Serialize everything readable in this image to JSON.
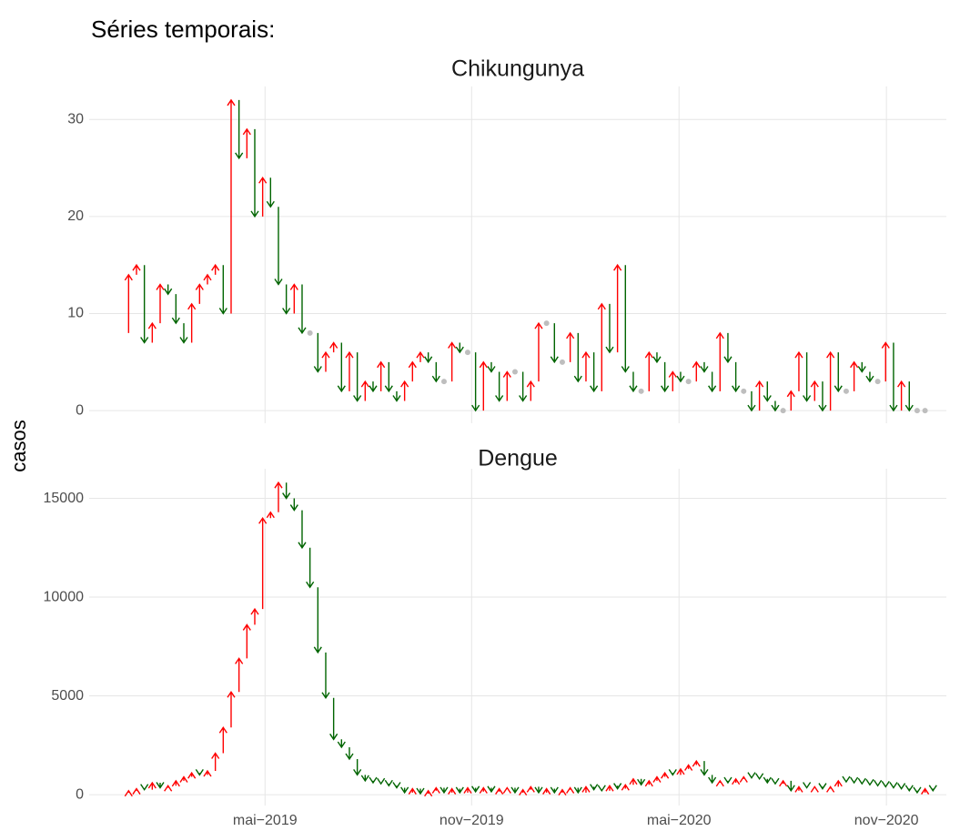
{
  "title": "Séries temporais:",
  "y_label": "casos",
  "up_color": "#ff0000",
  "down_color": "#006400",
  "equal_color": "#bebebe",
  "chart_data": [
    {
      "type": "arrow",
      "title": "Chikungunya",
      "x": [
        0,
        1,
        2,
        3,
        4,
        5,
        6,
        7,
        8,
        9,
        10,
        11,
        12,
        13,
        14,
        15,
        16,
        17,
        18,
        19,
        20,
        21,
        22,
        23,
        24,
        25,
        26,
        27,
        28,
        29,
        30,
        31,
        32,
        33,
        34,
        35,
        36,
        37,
        38,
        39,
        40,
        41,
        42,
        43,
        44,
        45,
        46,
        47,
        48,
        49,
        50,
        51,
        52,
        53,
        54,
        55,
        56,
        57,
        58,
        59,
        60,
        61,
        62,
        63,
        64,
        65,
        66,
        67,
        68,
        69,
        70,
        71,
        72,
        73,
        74,
        75,
        76,
        77,
        78,
        79,
        80,
        81,
        82,
        83,
        84,
        85,
        86,
        87,
        88,
        89,
        90,
        91,
        92,
        93,
        94,
        95,
        96,
        97,
        98,
        99,
        100,
        101,
        102
      ],
      "values": [
        8,
        14,
        15,
        7,
        9,
        13,
        12,
        9,
        7,
        11,
        13,
        14,
        15,
        10,
        32,
        26,
        29,
        20,
        24,
        21,
        13,
        10,
        13,
        8,
        8,
        4,
        6,
        7,
        2,
        6,
        1,
        3,
        2,
        5,
        2,
        1,
        3,
        5,
        6,
        5,
        3,
        3,
        7,
        6,
        6,
        0,
        5,
        4,
        1,
        4,
        4,
        1,
        3,
        9,
        9,
        5,
        5,
        8,
        3,
        6,
        2,
        11,
        6,
        15,
        4,
        2,
        2,
        6,
        5,
        2,
        4,
        3,
        3,
        5,
        4,
        2,
        8,
        5,
        2,
        2,
        0,
        3,
        1,
        0,
        0,
        2,
        6,
        1,
        3,
        0,
        6,
        2,
        2,
        5,
        4,
        3,
        3,
        7,
        0,
        3,
        0,
        0,
        0
      ],
      "ylim": [
        -1.3,
        33.4
      ],
      "yticks": [
        0,
        10,
        20,
        30
      ],
      "grid": true
    },
    {
      "type": "arrow",
      "title": "Dengue",
      "x": [
        0,
        1,
        2,
        3,
        4,
        5,
        6,
        7,
        8,
        9,
        10,
        11,
        12,
        13,
        14,
        15,
        16,
        17,
        18,
        19,
        20,
        21,
        22,
        23,
        24,
        25,
        26,
        27,
        28,
        29,
        30,
        31,
        32,
        33,
        34,
        35,
        36,
        37,
        38,
        39,
        40,
        41,
        42,
        43,
        44,
        45,
        46,
        47,
        48,
        49,
        50,
        51,
        52,
        53,
        54,
        55,
        56,
        57,
        58,
        59,
        60,
        61,
        62,
        63,
        64,
        65,
        66,
        67,
        68,
        69,
        70,
        71,
        72,
        73,
        74,
        75,
        76,
        77,
        78,
        79,
        80,
        81,
        82,
        83,
        84,
        85,
        86,
        87,
        88,
        89,
        90,
        91,
        92,
        93,
        94,
        95,
        96,
        97,
        98,
        99,
        100,
        101,
        102,
        103
      ],
      "values": [
        100,
        200,
        300,
        250,
        600,
        350,
        450,
        700,
        900,
        1100,
        1000,
        1200,
        2100,
        3400,
        5200,
        6900,
        8600,
        9400,
        14000,
        14300,
        15800,
        15000,
        14400,
        12500,
        10500,
        7200,
        4900,
        2800,
        2400,
        1800,
        1000,
        700,
        600,
        550,
        450,
        350,
        100,
        300,
        50,
        200,
        350,
        100,
        300,
        100,
        350,
        150,
        350,
        150,
        300,
        350,
        100,
        250,
        400,
        100,
        300,
        100,
        250,
        350,
        100,
        400,
        250,
        200,
        450,
        300,
        500,
        800,
        500,
        700,
        900,
        1100,
        1000,
        1300,
        1500,
        1700,
        1000,
        600,
        700,
        600,
        800,
        900,
        850,
        800,
        600,
        550,
        700,
        200,
        400,
        350,
        400,
        300,
        400,
        700,
        650,
        600,
        550,
        500,
        450,
        400,
        350,
        300,
        200,
        100,
        300,
        200
      ],
      "ylim": [
        -550,
        16500
      ],
      "yticks": [
        0,
        5000,
        10000,
        15000
      ],
      "grid": true,
      "xlim": [
        -4,
        104.7
      ],
      "xticks": [
        {
          "value": 18.3,
          "label": "mai−2019"
        },
        {
          "value": 44.5,
          "label": "nov−2019"
        },
        {
          "value": 70.8,
          "label": "mai−2020"
        },
        {
          "value": 97.1,
          "label": "nov−2020"
        }
      ]
    }
  ]
}
